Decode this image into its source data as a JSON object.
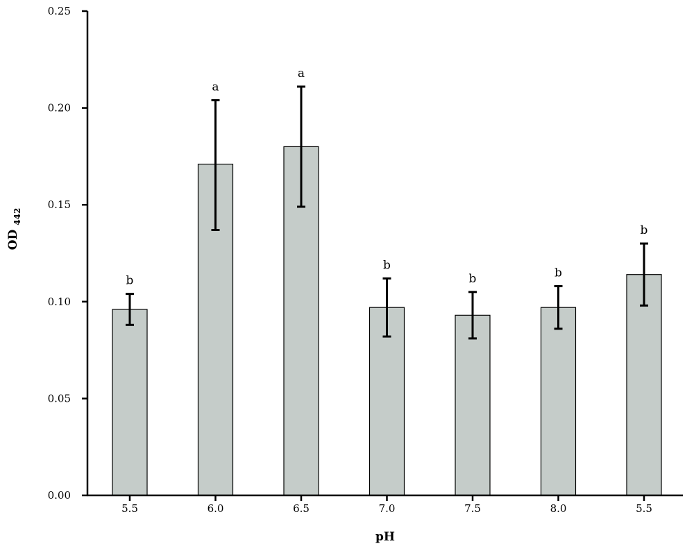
{
  "chart_data": {
    "type": "bar",
    "categories": [
      "5.5",
      "6.0",
      "6.5",
      "7.0",
      "7.5",
      "8.0",
      "5.5"
    ],
    "values": [
      0.096,
      0.171,
      0.18,
      0.097,
      0.093,
      0.097,
      0.114
    ],
    "error_low": [
      0.088,
      0.137,
      0.149,
      0.082,
      0.081,
      0.086,
      0.098
    ],
    "error_high": [
      0.104,
      0.204,
      0.211,
      0.112,
      0.105,
      0.108,
      0.13
    ],
    "significance": [
      "b",
      "a",
      "a",
      "b",
      "b",
      "b",
      "b"
    ],
    "xlabel": "pH",
    "ylabel": "OD",
    "ylabel_subscript": "442",
    "ylim": [
      0,
      0.25
    ],
    "yticks": [
      "0.00",
      "0.05",
      "0.10",
      "0.15",
      "0.20",
      "0.25"
    ],
    "grid": false,
    "bar_color": "#c5ccc9"
  }
}
